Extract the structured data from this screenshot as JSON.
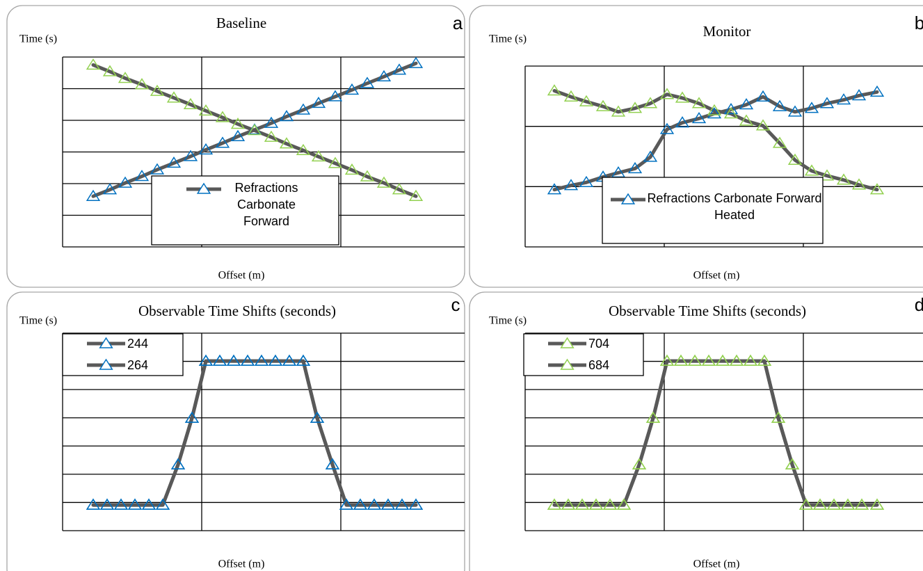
{
  "chart_data": [
    {
      "type": "line",
      "title": "Baseline",
      "panel_label": "a",
      "ylabel": "Time (s)",
      "xlabel": "Offset (m)",
      "xlim": [
        0,
        2.89
      ],
      "xticks": [
        1,
        2
      ],
      "ylim": [
        0,
        6
      ],
      "yticks": [
        0,
        1,
        2,
        3,
        4,
        5,
        6
      ],
      "grid": true,
      "line_color": "#595959",
      "x": [
        0.22,
        0.34,
        0.45,
        0.57,
        0.68,
        0.8,
        0.92,
        1.03,
        1.15,
        1.26,
        1.38,
        1.5,
        1.61,
        1.73,
        1.84,
        1.96,
        2.08,
        2.19,
        2.31,
        2.42,
        2.54
      ],
      "series": [
        {
          "name": "Refractions Carbonate Forward",
          "color": "#0070c0",
          "values": [
            1.6,
            1.81,
            2.02,
            2.23,
            2.44,
            2.65,
            2.86,
            3.07,
            3.28,
            3.49,
            3.7,
            3.91,
            4.12,
            4.33,
            4.54,
            4.75,
            4.96,
            5.17,
            5.38,
            5.59,
            5.8
          ]
        },
        {
          "color": "#92d050",
          "values": [
            5.75,
            5.54,
            5.33,
            5.13,
            4.92,
            4.71,
            4.5,
            4.3,
            4.09,
            3.88,
            3.68,
            3.47,
            3.26,
            3.05,
            2.85,
            2.64,
            2.43,
            2.22,
            2.02,
            1.81,
            1.6
          ]
        }
      ]
    },
    {
      "type": "line",
      "title": "Monitor",
      "panel_label": "b",
      "ylabel": "Time (s)",
      "xlabel": "Offset (m)",
      "xlim": [
        0,
        2.86
      ],
      "xticks": [
        1,
        2
      ],
      "ylim": [
        0,
        3
      ],
      "yticks": [
        0,
        1,
        2,
        3
      ],
      "grid": true,
      "line_color": "#595959",
      "x": [
        0.21,
        0.33,
        0.44,
        0.56,
        0.67,
        0.79,
        0.9,
        1.02,
        1.13,
        1.25,
        1.36,
        1.48,
        1.59,
        1.71,
        1.83,
        1.94,
        2.06,
        2.17,
        2.29,
        2.4,
        2.53
      ],
      "series": [
        {
          "name": "Refractions Carbonate Forward Heated",
          "color": "#0070c0",
          "values": [
            0.95,
            1.02,
            1.07,
            1.16,
            1.23,
            1.3,
            1.49,
            1.95,
            2.06,
            2.13,
            2.21,
            2.28,
            2.36,
            2.49,
            2.33,
            2.24,
            2.3,
            2.38,
            2.44,
            2.51,
            2.57
          ]
        },
        {
          "color": "#92d050",
          "values": [
            2.59,
            2.49,
            2.41,
            2.33,
            2.24,
            2.3,
            2.38,
            2.53,
            2.47,
            2.38,
            2.26,
            2.21,
            2.09,
            2.01,
            1.72,
            1.44,
            1.26,
            1.18,
            1.11,
            1.03,
            0.95
          ]
        }
      ]
    },
    {
      "type": "line",
      "title": "Observable Time Shifts (seconds)",
      "panel_label": "c",
      "ylabel": "Time (s)",
      "xlabel": "Offset (m)",
      "xlim": [
        0,
        2.89
      ],
      "xticks": [
        1,
        2
      ],
      "ylim": [
        0,
        7
      ],
      "yticks": [
        0,
        1,
        2,
        3,
        4,
        5,
        6,
        7
      ],
      "grid": true,
      "line_color": "#595959",
      "x": [
        0.22,
        0.32,
        0.42,
        0.52,
        0.62,
        0.72,
        0.83,
        0.93,
        1.03,
        1.13,
        1.23,
        1.33,
        1.43,
        1.53,
        1.63,
        1.73,
        1.83,
        1.94,
        2.04,
        2.14,
        2.24,
        2.34,
        2.44,
        2.54
      ],
      "series": [
        {
          "name": "244",
          "color": "#0070c0",
          "values": [
            0.91,
            0.91,
            0.91,
            0.91,
            0.91,
            0.91,
            2.34,
            3.99,
            6.01,
            6.01,
            6.01,
            6.01,
            6.01,
            6.01,
            6.01,
            6.01,
            3.99,
            2.34,
            0.91,
            0.91,
            0.91,
            0.91,
            0.91,
            0.91
          ]
        },
        {
          "name": "264",
          "color": "#0070c0",
          "values": [
            0.91,
            0.91,
            0.91,
            0.91,
            0.91,
            0.91,
            2.34,
            3.99,
            6.01,
            6.01,
            6.01,
            6.01,
            6.01,
            6.01,
            6.01,
            6.01,
            3.99,
            2.34,
            0.91,
            0.91,
            0.91,
            0.91,
            0.91,
            0.91
          ]
        }
      ]
    },
    {
      "type": "line",
      "title": "Observable Time Shifts (seconds)",
      "panel_label": "d",
      "ylabel": "Time (s)",
      "xlabel": "Offset (m)",
      "xlim": [
        0,
        2.86
      ],
      "xticks": [
        1,
        2
      ],
      "ylim": [
        0,
        7
      ],
      "yticks": [
        0,
        1,
        2,
        3,
        4,
        5,
        6,
        7
      ],
      "grid": true,
      "line_color": "#595959",
      "x": [
        0.21,
        0.31,
        0.41,
        0.51,
        0.61,
        0.71,
        0.82,
        0.92,
        1.02,
        1.12,
        1.22,
        1.32,
        1.42,
        1.52,
        1.62,
        1.72,
        1.82,
        1.92,
        2.02,
        2.12,
        2.22,
        2.32,
        2.42,
        2.53
      ],
      "series": [
        {
          "name": "704",
          "color": "#92d050",
          "values": [
            0.91,
            0.91,
            0.91,
            0.91,
            0.91,
            0.91,
            2.34,
            3.99,
            6.01,
            6.01,
            6.01,
            6.01,
            6.01,
            6.01,
            6.01,
            6.01,
            3.99,
            2.34,
            0.91,
            0.91,
            0.91,
            0.91,
            0.91,
            0.91
          ]
        },
        {
          "name": "684",
          "color": "#92d050",
          "values": [
            0.91,
            0.91,
            0.91,
            0.91,
            0.91,
            0.91,
            2.34,
            3.99,
            6.01,
            6.01,
            6.01,
            6.01,
            6.01,
            6.01,
            6.01,
            6.01,
            3.99,
            2.34,
            0.91,
            0.91,
            0.91,
            0.91,
            0.91,
            0.91
          ]
        }
      ]
    }
  ]
}
